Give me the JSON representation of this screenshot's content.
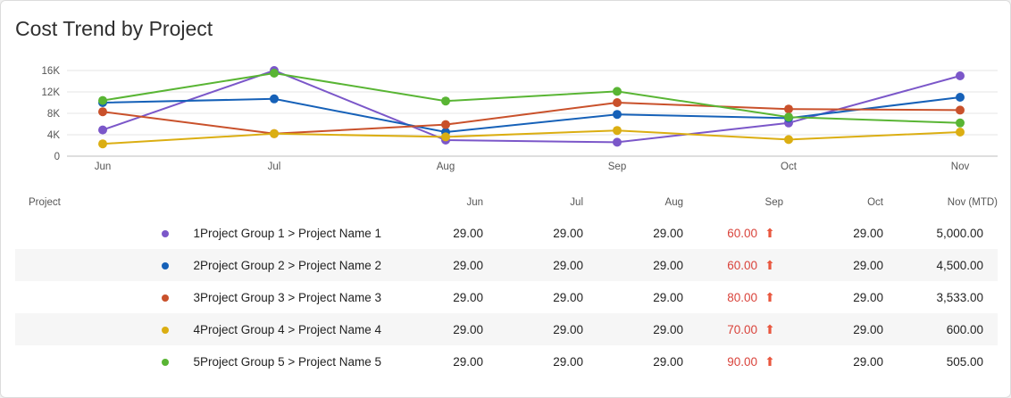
{
  "title": "Cost Trend by Project",
  "chart_data": {
    "type": "line",
    "title": "Cost Trend by Project",
    "categories": [
      "Jun",
      "Jul",
      "Aug",
      "Sep",
      "Oct",
      "Nov"
    ],
    "ylim": [
      0,
      16000
    ],
    "yticks": [
      0,
      4000,
      8000,
      12000,
      16000
    ],
    "ytick_labels": [
      "0",
      "4K",
      "8K",
      "12K",
      "16K"
    ],
    "grid": true,
    "series": [
      {
        "name": "Project Group 1 > Project Name 1",
        "color": "#7b57c9",
        "values": [
          4900,
          16000,
          3000,
          2600,
          6200,
          15000
        ]
      },
      {
        "name": "Project Group 2 > Project Name 2",
        "color": "#1661b8",
        "values": [
          10000,
          10700,
          4500,
          7800,
          7100,
          11000
        ]
      },
      {
        "name": "Project Group 3 > Project Name 3",
        "color": "#c9512b",
        "values": [
          8300,
          4200,
          5900,
          10000,
          8800,
          8600
        ]
      },
      {
        "name": "Project Group 4 > Project Name 4",
        "color": "#dbae12",
        "values": [
          2300,
          4200,
          3600,
          4800,
          3100,
          4500
        ]
      },
      {
        "name": "Project Group 5 > Project Name 5",
        "color": "#59b534",
        "values": [
          10400,
          15500,
          10300,
          12100,
          7300,
          6200
        ]
      }
    ]
  },
  "table": {
    "headers": {
      "project": "Project",
      "cols": [
        "Jun",
        "Jul",
        "Aug",
        "Sep",
        "Oct",
        "Nov (MTD)"
      ]
    },
    "rows": [
      {
        "num": "1",
        "name": "Project Group 1 > Project Name 1",
        "color": "#7b57c9",
        "values": [
          "29.00",
          "29.00",
          "29.00",
          "60.00",
          "29.00",
          "5,000.00"
        ]
      },
      {
        "num": "2",
        "name": "Project Group 2 > Project Name 2",
        "color": "#1661b8",
        "values": [
          "29.00",
          "29.00",
          "29.00",
          "60.00",
          "29.00",
          "4,500.00"
        ]
      },
      {
        "num": "3",
        "name": "Project Group 3 > Project Name 3",
        "color": "#c9512b",
        "values": [
          "29.00",
          "29.00",
          "29.00",
          "80.00",
          "29.00",
          "3,533.00"
        ]
      },
      {
        "num": "4",
        "name": "Project Group 4 > Project Name 4",
        "color": "#dbae12",
        "values": [
          "29.00",
          "29.00",
          "29.00",
          "70.00",
          "29.00",
          "600.00"
        ]
      },
      {
        "num": "5",
        "name": "Project Group 5 > Project Name 5",
        "color": "#59b534",
        "values": [
          "29.00",
          "29.00",
          "29.00",
          "90.00",
          "29.00",
          "505.00"
        ]
      }
    ],
    "highlight_col": 3,
    "highlight_icon": "arrow-up-icon"
  }
}
